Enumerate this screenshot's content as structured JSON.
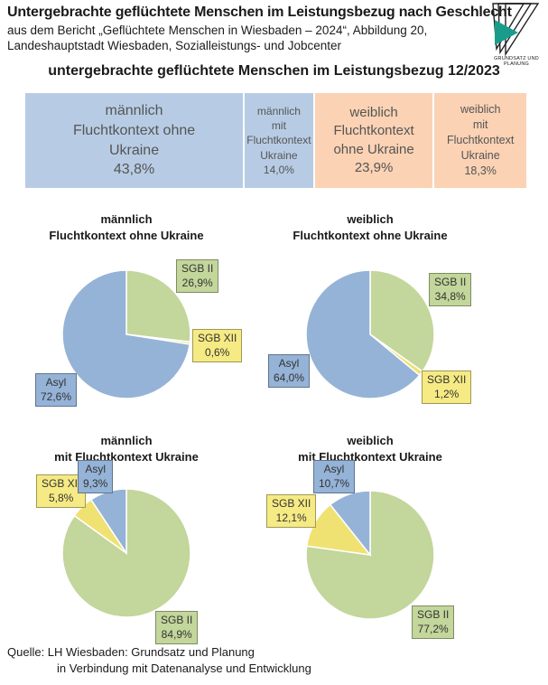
{
  "header": {
    "title": "Untergebrachte geflüchtete Menschen im Leistungsbezug nach Geschlecht",
    "subtitle_line1": "aus dem Bericht „Geflüchtete Menschen in Wiesbaden – 2024“, Abbildung 20,",
    "subtitle_line2": "Landeshauptstadt Wiesbaden, Sozialleistungs- und Jobcenter",
    "logo_text": "GRUNDSATZ UND PLANUNG"
  },
  "colors": {
    "male_bg": "#b7cce4",
    "female_bg": "#fbd2b4",
    "asyl": "#95b3d7",
    "sgb2": "#c3d69b",
    "sgb12": "#f0e272",
    "sgb12_label": "#f6ea84"
  },
  "chart_data": [
    {
      "type": "treemap",
      "title": "untergebrachte geflüchtete Menschen im Leistungsbezug 12/2023",
      "segments": [
        {
          "label": "männlich\nFluchtkontext ohne\nUkraine",
          "value": 43.8,
          "value_label": "43,8%",
          "group": "male"
        },
        {
          "label": "männlich\nmit\nFluchtkontext\nUkraine",
          "value": 14.0,
          "value_label": "14,0%",
          "group": "male"
        },
        {
          "label": "weiblich\nFluchtkontext\nohne Ukraine",
          "value": 23.9,
          "value_label": "23,9%",
          "group": "female"
        },
        {
          "label": "weiblich\nmit\nFluchtkontext\nUkraine",
          "value": 18.3,
          "value_label": "18,3%",
          "group": "female"
        }
      ]
    },
    {
      "type": "pie",
      "title": "männlich\nFluchtkontext ohne Ukraine",
      "slices": [
        {
          "label": "SGB II",
          "value": 26.9,
          "value_label": "26,9%",
          "color_key": "sgb2"
        },
        {
          "label": "SGB XII",
          "value": 0.6,
          "value_label": "0,6%",
          "color_key": "sgb12"
        },
        {
          "label": "Asyl",
          "value": 72.6,
          "value_label": "72,6%",
          "color_key": "asyl"
        }
      ]
    },
    {
      "type": "pie",
      "title": "weiblich\nFluchtkontext ohne Ukraine",
      "slices": [
        {
          "label": "SGB II",
          "value": 34.8,
          "value_label": "34,8%",
          "color_key": "sgb2"
        },
        {
          "label": "SGB XII",
          "value": 1.2,
          "value_label": "1,2%",
          "color_key": "sgb12"
        },
        {
          "label": "Asyl",
          "value": 64.0,
          "value_label": "64,0%",
          "color_key": "asyl"
        }
      ]
    },
    {
      "type": "pie",
      "title": "männlich\nmit Fluchtkontext Ukraine",
      "slices": [
        {
          "label": "SGB II",
          "value": 84.9,
          "value_label": "84,9%",
          "color_key": "sgb2"
        },
        {
          "label": "SGB XII",
          "value": 5.8,
          "value_label": "5,8%",
          "color_key": "sgb12"
        },
        {
          "label": "Asyl",
          "value": 9.3,
          "value_label": "9,3%",
          "color_key": "asyl"
        }
      ]
    },
    {
      "type": "pie",
      "title": "weiblich\nmit Fluchtkontext Ukraine",
      "slices": [
        {
          "label": "SGB II",
          "value": 77.2,
          "value_label": "77,2%",
          "color_key": "sgb2"
        },
        {
          "label": "SGB XII",
          "value": 12.1,
          "value_label": "12,1%",
          "color_key": "sgb12"
        },
        {
          "label": "Asyl",
          "value": 10.7,
          "value_label": "10,7%",
          "color_key": "asyl"
        }
      ]
    }
  ],
  "source": {
    "line1": "Quelle:   LH Wiesbaden: Grundsatz und Planung",
    "line2": "in Verbindung mit Datenanalyse und Entwicklung"
  }
}
